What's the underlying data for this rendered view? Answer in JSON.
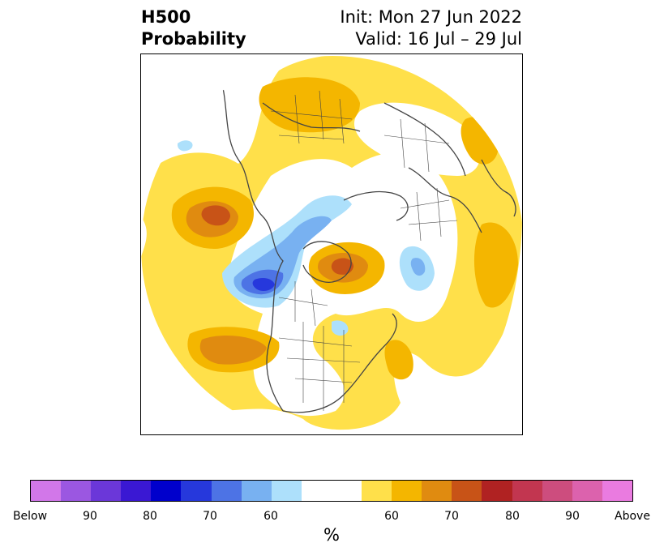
{
  "title": {
    "left_line1": "H500",
    "left_line2": "Probability",
    "right_line1": "Init: Mon 27 Jun 2022",
    "right_line2": "Valid: 16 Jul – 29 Jul"
  },
  "colorbar": {
    "colors": [
      "#d277e9",
      "#9b57e1",
      "#6b37d9",
      "#3a18d3",
      "#0000cc",
      "#2638dc",
      "#4d73e5",
      "#78b1f1",
      "#ade0fb",
      "#ffffff",
      "#ffffff",
      "#ffe04a",
      "#f4b600",
      "#e08b10",
      "#c85317",
      "#b02222",
      "#c23650",
      "#cd4d7e",
      "#dc62ad",
      "#ea7be0"
    ],
    "tick_labels": [
      "Below",
      "90",
      "80",
      "70",
      "60",
      "60",
      "70",
      "80",
      "90",
      "Above"
    ],
    "label": "%"
  },
  "map_icon": "north-polar-stereographic-map"
}
